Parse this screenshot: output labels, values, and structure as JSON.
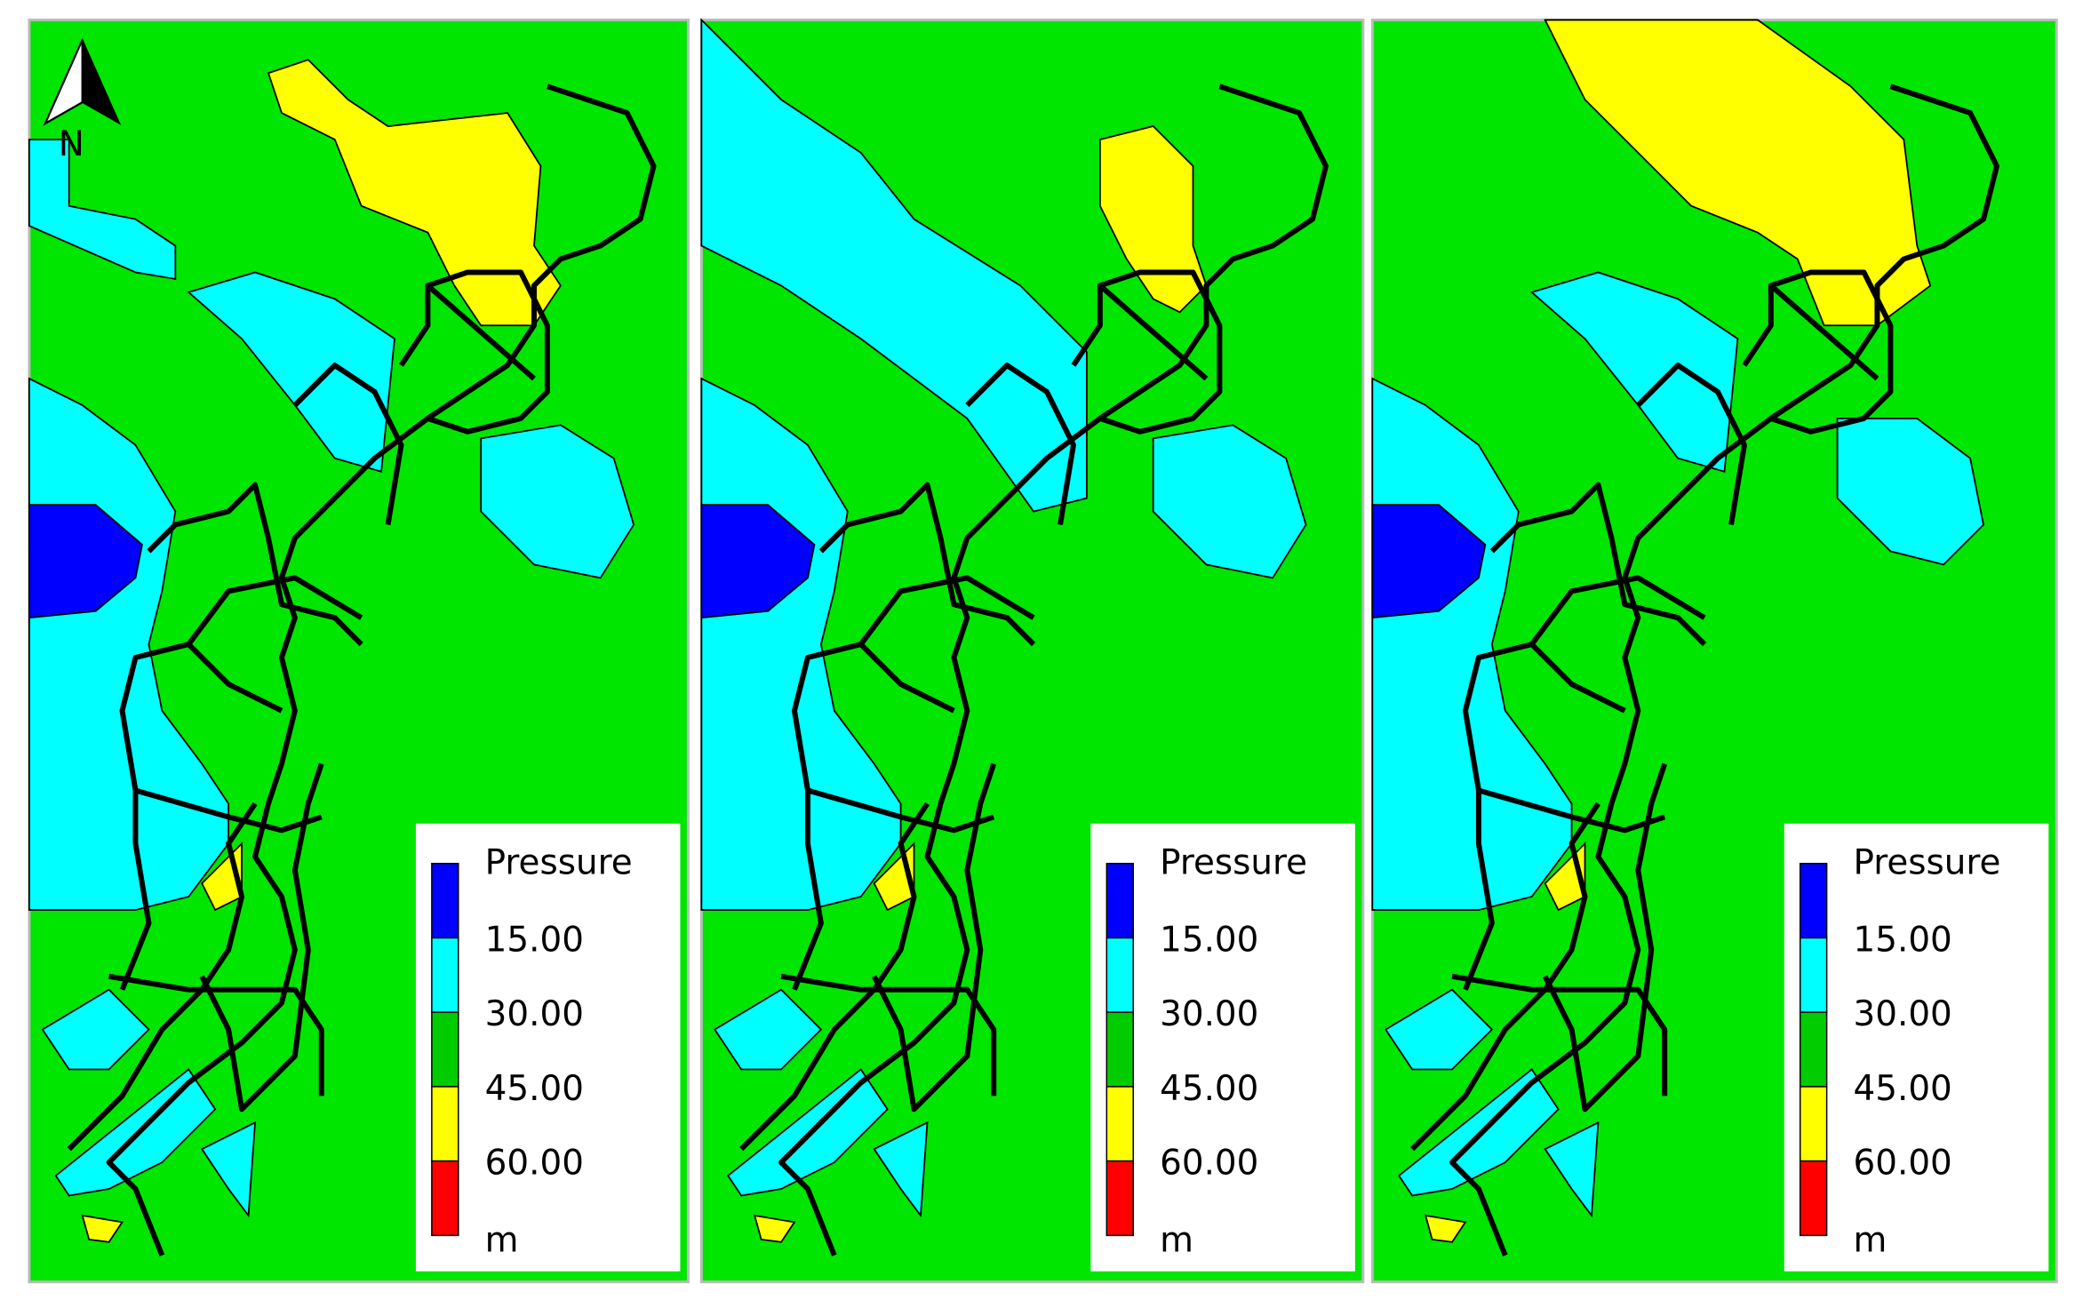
{
  "north_label": "N",
  "legend_colors": [
    "#0000ff",
    "#00ffff",
    "#00cc00",
    "#ffff00",
    "#ff0000"
  ],
  "panels": [
    {
      "legend": {
        "title": "Pressure",
        "labels": [
          "15.00",
          "30.00",
          "45.00",
          "60.00"
        ],
        "unit": "m"
      }
    },
    {
      "legend": {
        "title": "Pressure",
        "labels": [
          "15.00",
          "30.00",
          "45.00",
          "60.00"
        ],
        "unit": "m"
      }
    },
    {
      "legend": {
        "title": "Pressure",
        "labels": [
          "15.00",
          "30.00",
          "45.00",
          "60.00"
        ],
        "unit": "m"
      }
    }
  ]
}
